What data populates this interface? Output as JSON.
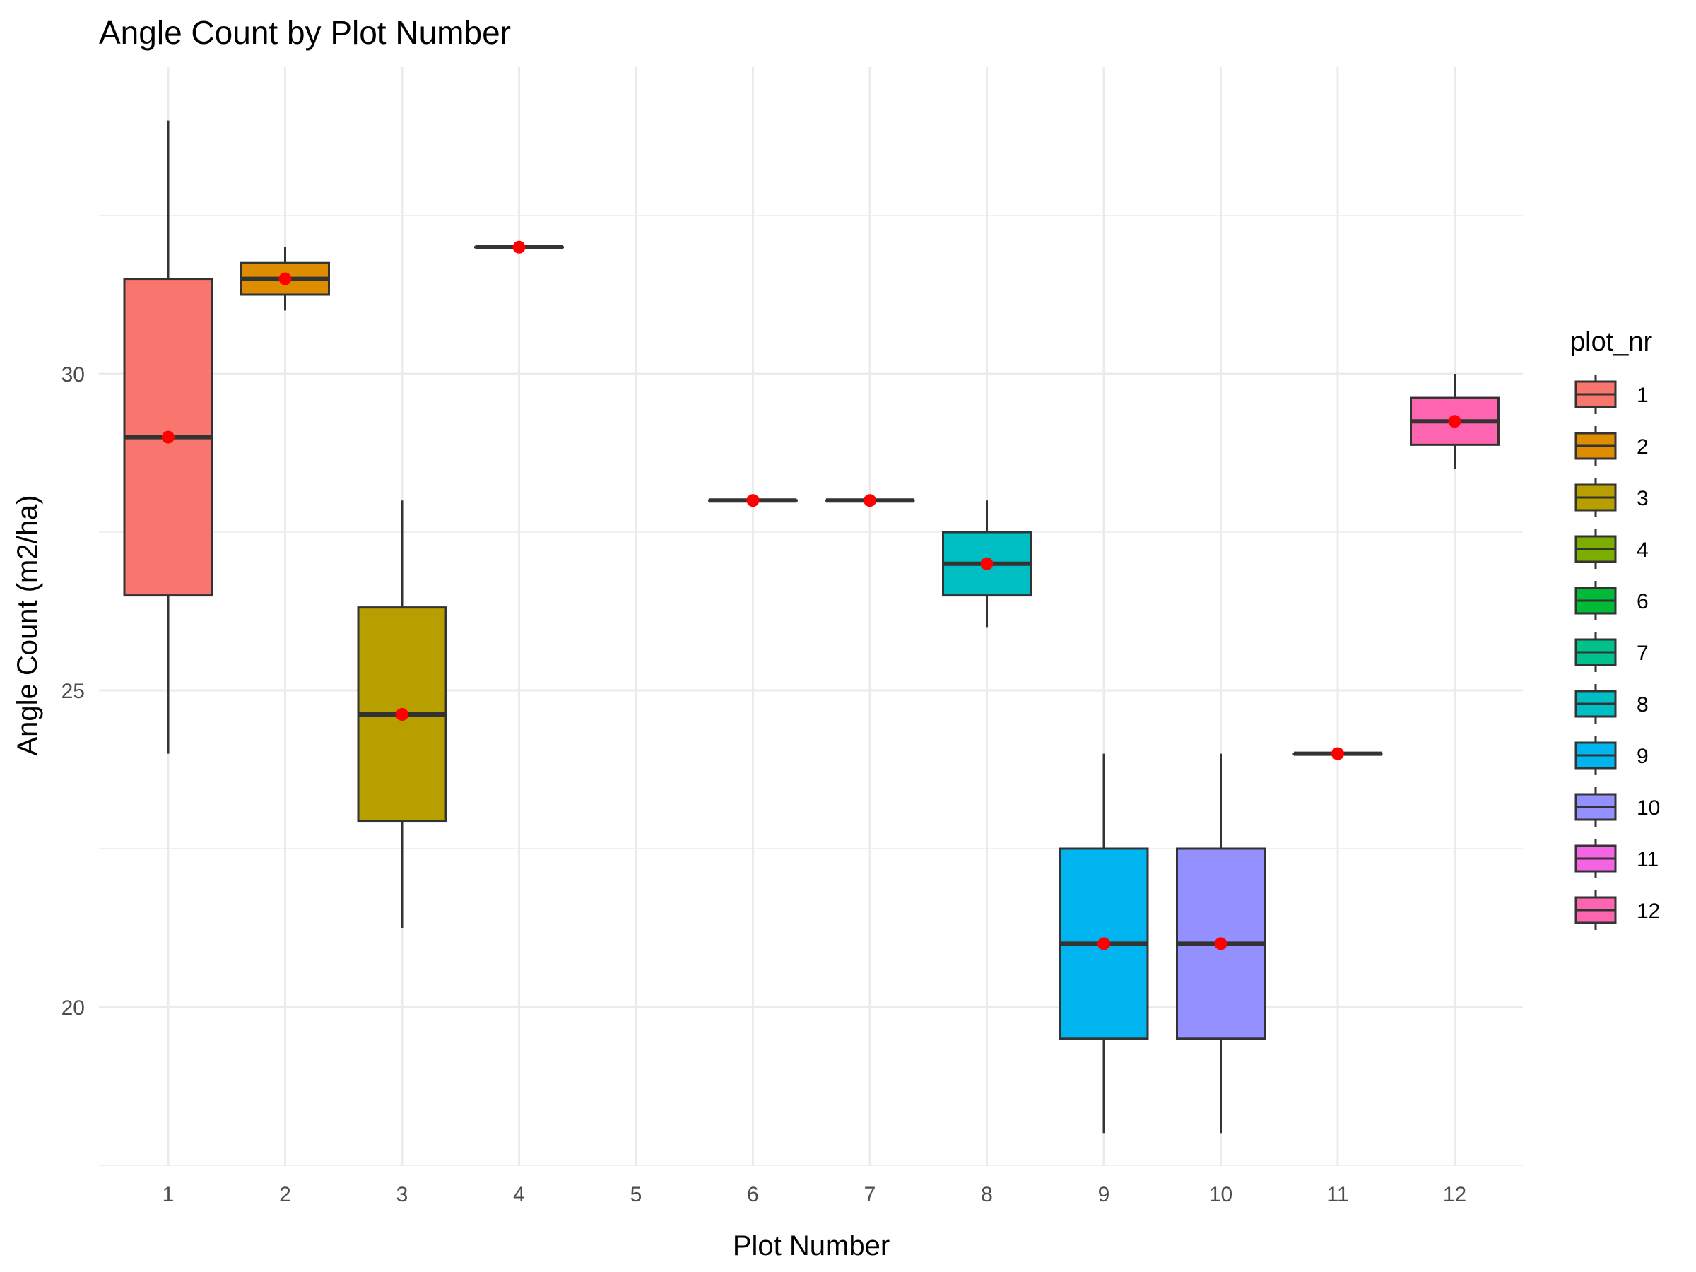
{
  "chart_data": {
    "type": "boxplot",
    "title": "Angle Count by Plot Number",
    "xlabel": "Plot Number",
    "ylabel": "Angle Count (m2/ha)",
    "categories": [
      "1",
      "2",
      "3",
      "4",
      "5",
      "6",
      "7",
      "8",
      "9",
      "10",
      "11",
      "12"
    ],
    "ylim": [
      17.5,
      35
    ],
    "yticks": [
      20,
      25,
      30
    ],
    "grid": true,
    "legend": {
      "title": "plot_nr",
      "position": "right",
      "items": [
        {
          "label": "1",
          "color": "#F8766D"
        },
        {
          "label": "2",
          "color": "#DE8C00"
        },
        {
          "label": "3",
          "color": "#B79F00"
        },
        {
          "label": "4",
          "color": "#7CAE00"
        },
        {
          "label": "6",
          "color": "#00BA38"
        },
        {
          "label": "7",
          "color": "#00C08B"
        },
        {
          "label": "8",
          "color": "#00BFC4"
        },
        {
          "label": "9",
          "color": "#00B4F0"
        },
        {
          "label": "10",
          "color": "#9590FF"
        },
        {
          "label": "11",
          "color": "#F564E3"
        },
        {
          "label": "12",
          "color": "#FF64B0"
        }
      ]
    },
    "boxes": [
      {
        "category": "1",
        "color": "#F8766D",
        "min": 24.0,
        "q1": 26.5,
        "median": 29.0,
        "q3": 31.5,
        "max": 34.0,
        "mean": 29.0
      },
      {
        "category": "2",
        "color": "#DE8C00",
        "min": 31.0,
        "q1": 31.25,
        "median": 31.5,
        "q3": 31.75,
        "max": 32.0,
        "mean": 31.5
      },
      {
        "category": "3",
        "color": "#B79F00",
        "min": 21.25,
        "q1": 22.94,
        "median": 24.62,
        "q3": 26.31,
        "max": 28.0,
        "mean": 24.62
      },
      {
        "category": "4",
        "color": "#7CAE00",
        "min": 32.0,
        "q1": 32.0,
        "median": 32.0,
        "q3": 32.0,
        "max": 32.0,
        "mean": 32.0
      },
      {
        "category": "6",
        "color": "#00BA38",
        "min": 28.0,
        "q1": 28.0,
        "median": 28.0,
        "q3": 28.0,
        "max": 28.0,
        "mean": 28.0
      },
      {
        "category": "7",
        "color": "#00C08B",
        "min": 28.0,
        "q1": 28.0,
        "median": 28.0,
        "q3": 28.0,
        "max": 28.0,
        "mean": 28.0
      },
      {
        "category": "8",
        "color": "#00BFC4",
        "min": 26.0,
        "q1": 26.5,
        "median": 27.0,
        "q3": 27.5,
        "max": 28.0,
        "mean": 27.0
      },
      {
        "category": "9",
        "color": "#00B4F0",
        "min": 18.0,
        "q1": 19.5,
        "median": 21.0,
        "q3": 22.5,
        "max": 24.0,
        "mean": 21.0
      },
      {
        "category": "10",
        "color": "#9590FF",
        "min": 18.0,
        "q1": 19.5,
        "median": 21.0,
        "q3": 22.5,
        "max": 24.0,
        "mean": 21.0
      },
      {
        "category": "11",
        "color": "#F564E3",
        "min": 24.0,
        "q1": 24.0,
        "median": 24.0,
        "q3": 24.0,
        "max": 24.0,
        "mean": 24.0
      },
      {
        "category": "12",
        "color": "#FF64B0",
        "min": 28.5,
        "q1": 28.88,
        "median": 29.25,
        "q3": 29.62,
        "max": 30.0,
        "mean": 29.25
      }
    ],
    "mean_point_color": "#FF0000"
  }
}
